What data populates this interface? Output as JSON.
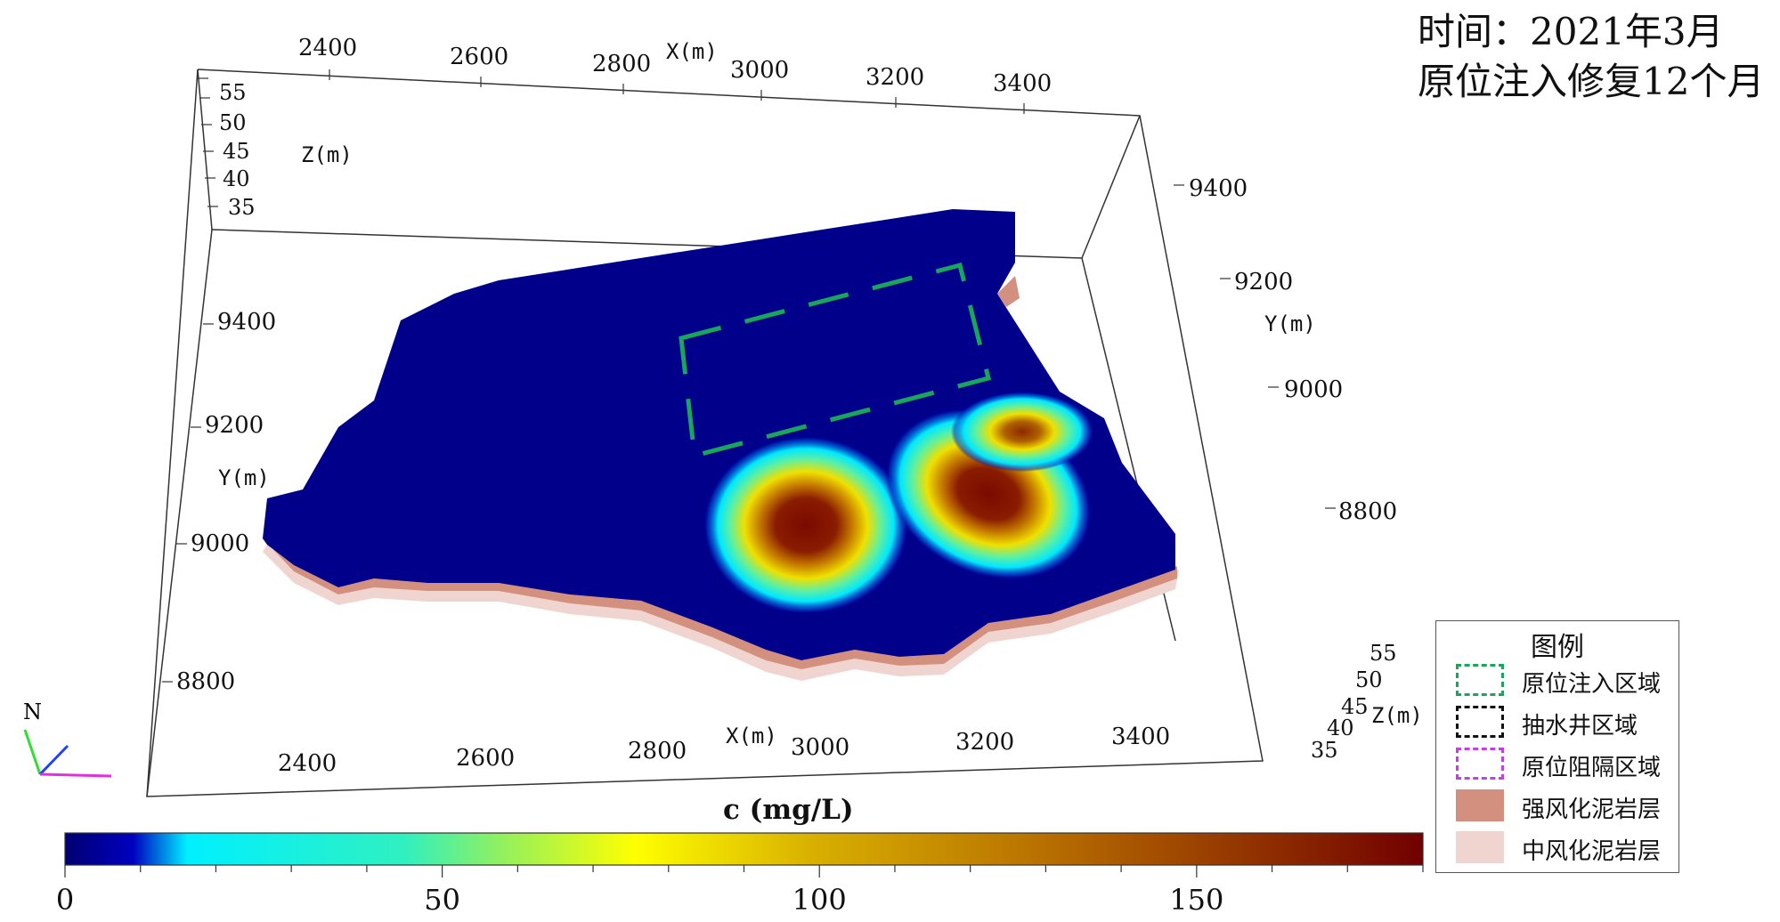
{
  "header": {
    "time_line": "时间：2021年3月",
    "desc_line": "原位注入修复12个月"
  },
  "axes": {
    "x_top_label": "X(m)",
    "x_top_ticks": [
      "2400",
      "2600",
      "2800",
      "3000",
      "3200",
      "3400"
    ],
    "x_bottom_label": "X(m)",
    "x_bottom_ticks": [
      "2400",
      "2600",
      "2800",
      "3000",
      "3200",
      "3400"
    ],
    "y_left_label": "Y(m)",
    "y_left_ticks": [
      "9400",
      "9200",
      "9000",
      "8800"
    ],
    "y_right_label": "Y(m)",
    "y_right_ticks": [
      "9400",
      "9200",
      "9000",
      "8800"
    ],
    "z_left_label": "Z(m)",
    "z_left_ticks": [
      "55",
      "50",
      "45",
      "40",
      "35"
    ],
    "z_right_label": "Z(m)",
    "z_right_ticks": [
      "55",
      "50",
      "45",
      "40",
      "35"
    ]
  },
  "north_label": "N",
  "colorbar": {
    "title": "c (mg/L)",
    "min": 0,
    "max": 180,
    "tick_labels": [
      "0",
      "50",
      "100",
      "150"
    ],
    "tick_values": [
      0,
      50,
      100,
      150
    ],
    "stops": [
      "#000070",
      "#00f0ff",
      "#ffff00",
      "#c08000",
      "#700000"
    ]
  },
  "legend": {
    "title": "图例",
    "items": [
      {
        "label": "原位注入区域",
        "color": "#1aa55a",
        "style": "dashed"
      },
      {
        "label": "抽水井区域",
        "color": "#111111",
        "style": "dashed"
      },
      {
        "label": "原位阻隔区域",
        "color": "#c040e0",
        "style": "dashed"
      },
      {
        "label": "强风化泥岩层",
        "color": "#d4907e",
        "style": "fill"
      },
      {
        "label": "中风化泥岩层",
        "color": "#f0d4cf",
        "style": "fill"
      }
    ]
  },
  "field": {
    "background_color": "#00008b",
    "hotspots": [
      {
        "name": "west",
        "peak_mg_l": 150
      },
      {
        "name": "center",
        "peak_mg_l": 175
      },
      {
        "name": "northeast",
        "peak_mg_l": 140
      }
    ]
  }
}
